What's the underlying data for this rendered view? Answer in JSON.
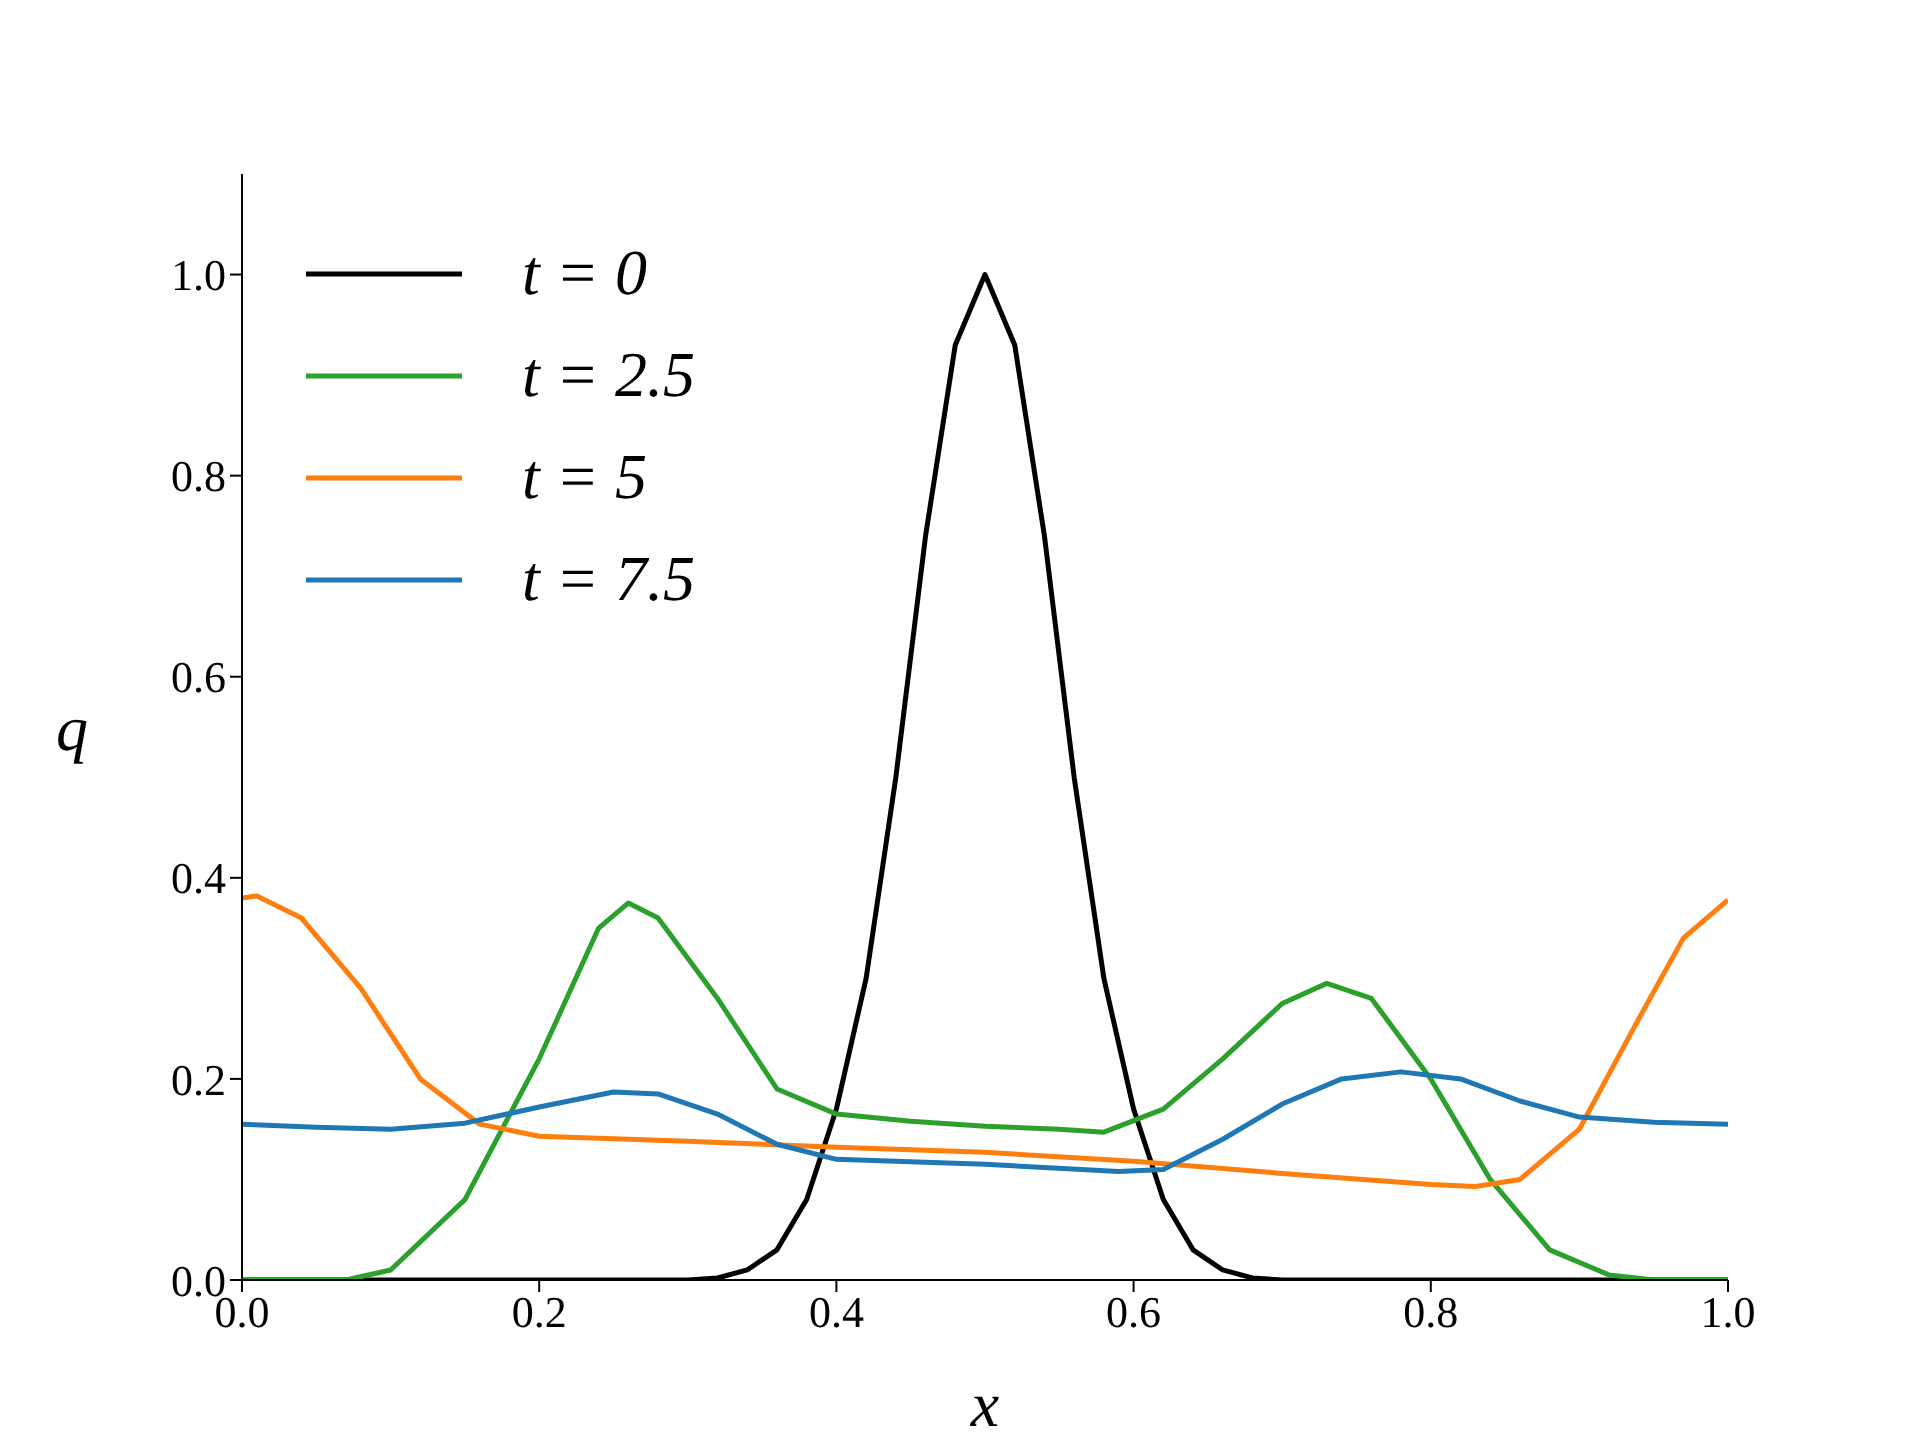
{
  "chart_data": {
    "type": "line",
    "xlabel": "x",
    "ylabel": "q",
    "xlim": [
      0,
      1
    ],
    "ylim": [
      0,
      1.1
    ],
    "xticks": [
      {
        "value": 0,
        "label": "0.0"
      },
      {
        "value": 0.2,
        "label": "0.2"
      },
      {
        "value": 0.4,
        "label": "0.4"
      },
      {
        "value": 0.6,
        "label": "0.6"
      },
      {
        "value": 0.8,
        "label": "0.8"
      },
      {
        "value": 1,
        "label": "1.0"
      }
    ],
    "yticks": [
      {
        "value": 0,
        "label": "0.0"
      },
      {
        "value": 0.2,
        "label": "0.2"
      },
      {
        "value": 0.4,
        "label": "0.4"
      },
      {
        "value": 0.6,
        "label": "0.6"
      },
      {
        "value": 0.8,
        "label": "0.8"
      },
      {
        "value": 1,
        "label": "1.0"
      }
    ],
    "grid": false,
    "legend": "top left",
    "marker": "none",
    "line_style": "solid",
    "series": [
      {
        "name": "t = 0",
        "color": "#000000",
        "x": [
          0,
          0.3,
          0.32,
          0.34,
          0.36,
          0.38,
          0.4,
          0.42,
          0.44,
          0.46,
          0.48,
          0.5,
          0.52,
          0.54,
          0.56,
          0.58,
          0.6,
          0.62,
          0.64,
          0.66,
          0.68,
          0.7,
          1
        ],
        "values": [
          0,
          0,
          0.002,
          0.01,
          0.03,
          0.08,
          0.17,
          0.3,
          0.5,
          0.74,
          0.93,
          1,
          0.93,
          0.74,
          0.5,
          0.3,
          0.17,
          0.08,
          0.03,
          0.01,
          0.002,
          0,
          0
        ]
      },
      {
        "name": "t = 2.5",
        "color": "#2ca02c",
        "x": [
          0,
          0.07,
          0.1,
          0.15,
          0.2,
          0.24,
          0.26,
          0.28,
          0.32,
          0.36,
          0.4,
          0.45,
          0.5,
          0.55,
          0.58,
          0.62,
          0.66,
          0.7,
          0.73,
          0.76,
          0.8,
          0.84,
          0.88,
          0.92,
          0.95,
          1
        ],
        "values": [
          0,
          0,
          0.01,
          0.08,
          0.22,
          0.35,
          0.375,
          0.36,
          0.28,
          0.19,
          0.165,
          0.158,
          0.153,
          0.15,
          0.147,
          0.17,
          0.22,
          0.275,
          0.295,
          0.28,
          0.2,
          0.1,
          0.03,
          0.005,
          0,
          0
        ]
      },
      {
        "name": "t = 5",
        "color": "#ff7f0e",
        "x": [
          0,
          0.01,
          0.04,
          0.08,
          0.12,
          0.16,
          0.2,
          0.3,
          0.4,
          0.5,
          0.6,
          0.7,
          0.8,
          0.83,
          0.86,
          0.9,
          0.94,
          0.97,
          1
        ],
        "values": [
          0.38,
          0.382,
          0.36,
          0.29,
          0.2,
          0.155,
          0.143,
          0.138,
          0.132,
          0.127,
          0.118,
          0.106,
          0.095,
          0.093,
          0.1,
          0.15,
          0.26,
          0.34,
          0.378
        ]
      },
      {
        "name": "t = 7.5",
        "color": "#1f77b4",
        "x": [
          0,
          0.05,
          0.1,
          0.15,
          0.2,
          0.25,
          0.28,
          0.32,
          0.36,
          0.4,
          0.5,
          0.59,
          0.62,
          0.66,
          0.7,
          0.74,
          0.78,
          0.82,
          0.86,
          0.9,
          0.95,
          1
        ],
        "values": [
          0.155,
          0.152,
          0.15,
          0.156,
          0.172,
          0.187,
          0.185,
          0.165,
          0.135,
          0.12,
          0.115,
          0.108,
          0.11,
          0.14,
          0.175,
          0.2,
          0.207,
          0.2,
          0.178,
          0.162,
          0.157,
          0.155
        ]
      }
    ]
  }
}
